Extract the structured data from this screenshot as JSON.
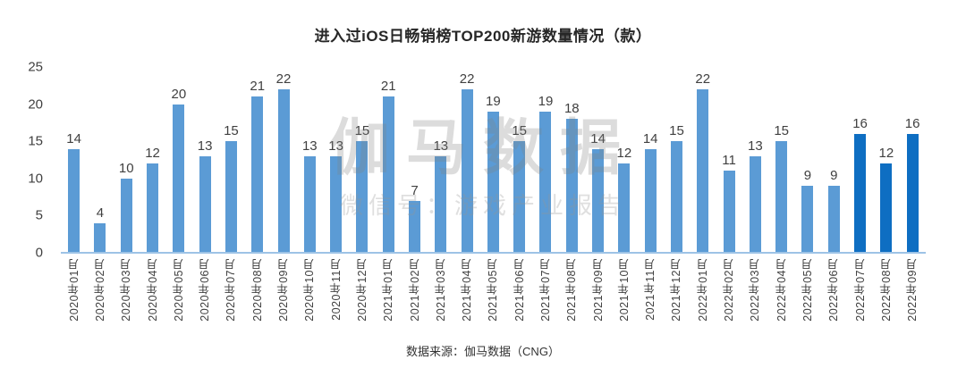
{
  "title": "进入过iOS日畅销榜TOP200新游数量情况（款）",
  "watermark": {
    "line1": "伽马数据",
    "line2": "微信号：游戏产业报告"
  },
  "footer": {
    "source_label": "数据来源：伽马数据（CNG）"
  },
  "colors": {
    "bar_default": "#5b9bd5",
    "bar_highlight": "#0e6ec2",
    "axis_line": "#9dc3e6",
    "text": "#404040"
  },
  "chart_data": {
    "type": "bar",
    "title": "进入过iOS日畅销榜TOP200新游数量情况（款）",
    "xlabel": "",
    "ylabel": "",
    "ylim": [
      0,
      25
    ],
    "yticks": [
      0,
      5,
      10,
      15,
      20,
      25
    ],
    "grid": false,
    "legend": "none",
    "categories": [
      "2020年01月",
      "2020年02月",
      "2020年03月",
      "2020年04月",
      "2020年05月",
      "2020年06月",
      "2020年07月",
      "2020年08月",
      "2020年09月",
      "2020年10月",
      "2020年11月",
      "2020年12月",
      "2021年01月",
      "2021年02月",
      "2021年03月",
      "2021年04月",
      "2021年05月",
      "2021年06月",
      "2021年07月",
      "2021年08月",
      "2021年09月",
      "2021年10月",
      "2021年11月",
      "2021年12月",
      "2022年01月",
      "2022年02月",
      "2022年03月",
      "2022年04月",
      "2022年05月",
      "2022年06月",
      "2022年07月",
      "2022年08月",
      "2022年09月"
    ],
    "values": [
      14,
      4,
      10,
      12,
      20,
      13,
      15,
      21,
      22,
      13,
      13,
      15,
      21,
      7,
      13,
      22,
      19,
      15,
      19,
      18,
      14,
      12,
      14,
      15,
      22,
      11,
      13,
      15,
      9,
      9,
      16,
      12,
      16
    ],
    "highlight_from_index": 30,
    "bar_colors": {
      "default": "#5b9bd5",
      "highlight": "#0e6ec2"
    }
  }
}
